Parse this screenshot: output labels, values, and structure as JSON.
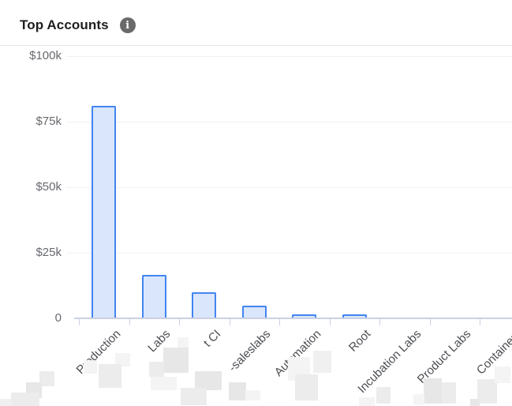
{
  "header": {
    "title": "Top Accounts",
    "info_icon": "info-icon"
  },
  "chart_data": {
    "type": "bar",
    "title": "Top Accounts",
    "categories": [
      "Production",
      "Labs",
      "t CI",
      "-saleslabs",
      "Automation",
      "Root",
      "Incubation Labs",
      "Product Labs",
      "Containers"
    ],
    "values": [
      81000,
      16300,
      9700,
      4800,
      1300,
      1300,
      0,
      0,
      0
    ],
    "redacted_label_prefix": [
      true,
      true,
      true,
      true,
      false,
      false,
      false,
      false,
      false
    ],
    "xlabel": "",
    "ylabel": "",
    "ylim": [
      0,
      100000
    ],
    "y_tick_values": [
      100000,
      75000,
      50000,
      25000,
      0
    ],
    "y_tick_labels": [
      "$100k",
      "$75k",
      "$50k",
      "$25k",
      "0"
    ],
    "grid": true,
    "legend": false,
    "x_labels_rotated_degrees": -45
  },
  "colors": {
    "bar_fill": "#d9e6fb",
    "bar_border": "#4285f0",
    "axis_line": "#ccd0e2",
    "gridline": "#f1f1f1",
    "y_tick_label": "#67696e",
    "x_tick_label": "#4c4e52",
    "title": "#1f1f1f",
    "info_icon_bg": "#6a6a6a",
    "divider": "#e5e5e5"
  }
}
